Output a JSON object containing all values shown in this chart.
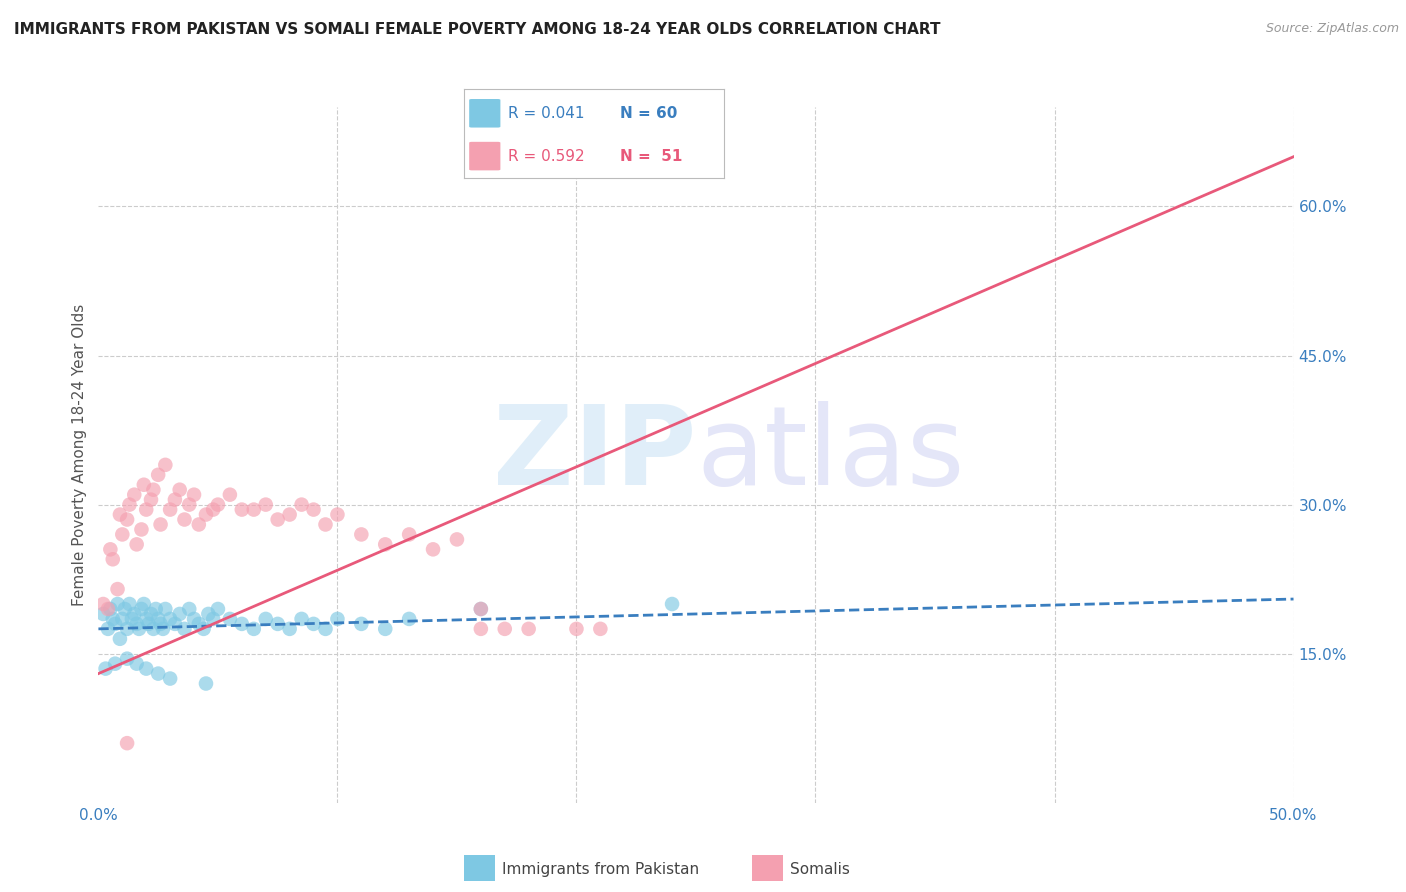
{
  "title": "IMMIGRANTS FROM PAKISTAN VS SOMALI FEMALE POVERTY AMONG 18-24 YEAR OLDS CORRELATION CHART",
  "source": "Source: ZipAtlas.com",
  "ylabel": "Female Poverty Among 18-24 Year Olds",
  "x_min": 0.0,
  "x_max": 0.5,
  "y_min": 0.0,
  "y_max": 0.7,
  "y_ticks_right": [
    0.15,
    0.3,
    0.45,
    0.6
  ],
  "pakistan_R": 0.041,
  "pakistan_N": 60,
  "somali_R": 0.592,
  "somali_N": 51,
  "pakistan_color": "#7ec8e3",
  "somali_color": "#f4a0b0",
  "pakistan_line_color": "#3a7ebf",
  "somali_line_color": "#e8597a",
  "background_color": "#ffffff",
  "pak_line_x": [
    0.0,
    0.5
  ],
  "pak_line_y": [
    0.175,
    0.205
  ],
  "som_line_x": [
    0.0,
    0.5
  ],
  "som_line_y": [
    0.13,
    0.65
  ],
  "pakistan_scatter_x": [
    0.002,
    0.004,
    0.005,
    0.006,
    0.007,
    0.008,
    0.009,
    0.01,
    0.011,
    0.012,
    0.013,
    0.014,
    0.015,
    0.016,
    0.017,
    0.018,
    0.019,
    0.02,
    0.021,
    0.022,
    0.023,
    0.024,
    0.025,
    0.026,
    0.027,
    0.028,
    0.03,
    0.032,
    0.034,
    0.036,
    0.038,
    0.04,
    0.042,
    0.044,
    0.046,
    0.048,
    0.05,
    0.055,
    0.06,
    0.065,
    0.07,
    0.075,
    0.08,
    0.085,
    0.09,
    0.095,
    0.1,
    0.11,
    0.12,
    0.13,
    0.003,
    0.007,
    0.012,
    0.016,
    0.02,
    0.025,
    0.03,
    0.045,
    0.16,
    0.24
  ],
  "pakistan_scatter_y": [
    0.19,
    0.175,
    0.195,
    0.185,
    0.18,
    0.2,
    0.165,
    0.185,
    0.195,
    0.175,
    0.2,
    0.185,
    0.19,
    0.18,
    0.175,
    0.195,
    0.2,
    0.185,
    0.18,
    0.19,
    0.175,
    0.195,
    0.185,
    0.18,
    0.175,
    0.195,
    0.185,
    0.18,
    0.19,
    0.175,
    0.195,
    0.185,
    0.18,
    0.175,
    0.19,
    0.185,
    0.195,
    0.185,
    0.18,
    0.175,
    0.185,
    0.18,
    0.175,
    0.185,
    0.18,
    0.175,
    0.185,
    0.18,
    0.175,
    0.185,
    0.135,
    0.14,
    0.145,
    0.14,
    0.135,
    0.13,
    0.125,
    0.12,
    0.195,
    0.2
  ],
  "somali_scatter_x": [
    0.002,
    0.004,
    0.005,
    0.006,
    0.008,
    0.009,
    0.01,
    0.012,
    0.013,
    0.015,
    0.016,
    0.018,
    0.019,
    0.02,
    0.022,
    0.023,
    0.025,
    0.026,
    0.028,
    0.03,
    0.032,
    0.034,
    0.036,
    0.038,
    0.04,
    0.042,
    0.045,
    0.048,
    0.05,
    0.055,
    0.06,
    0.065,
    0.07,
    0.075,
    0.08,
    0.085,
    0.09,
    0.095,
    0.1,
    0.11,
    0.12,
    0.13,
    0.14,
    0.15,
    0.16,
    0.17,
    0.18,
    0.2,
    0.21,
    0.16,
    0.012
  ],
  "somali_scatter_y": [
    0.2,
    0.195,
    0.255,
    0.245,
    0.215,
    0.29,
    0.27,
    0.285,
    0.3,
    0.31,
    0.26,
    0.275,
    0.32,
    0.295,
    0.305,
    0.315,
    0.33,
    0.28,
    0.34,
    0.295,
    0.305,
    0.315,
    0.285,
    0.3,
    0.31,
    0.28,
    0.29,
    0.295,
    0.3,
    0.31,
    0.295,
    0.295,
    0.3,
    0.285,
    0.29,
    0.3,
    0.295,
    0.28,
    0.29,
    0.27,
    0.26,
    0.27,
    0.255,
    0.265,
    0.175,
    0.175,
    0.175,
    0.175,
    0.175,
    0.195,
    0.06
  ]
}
